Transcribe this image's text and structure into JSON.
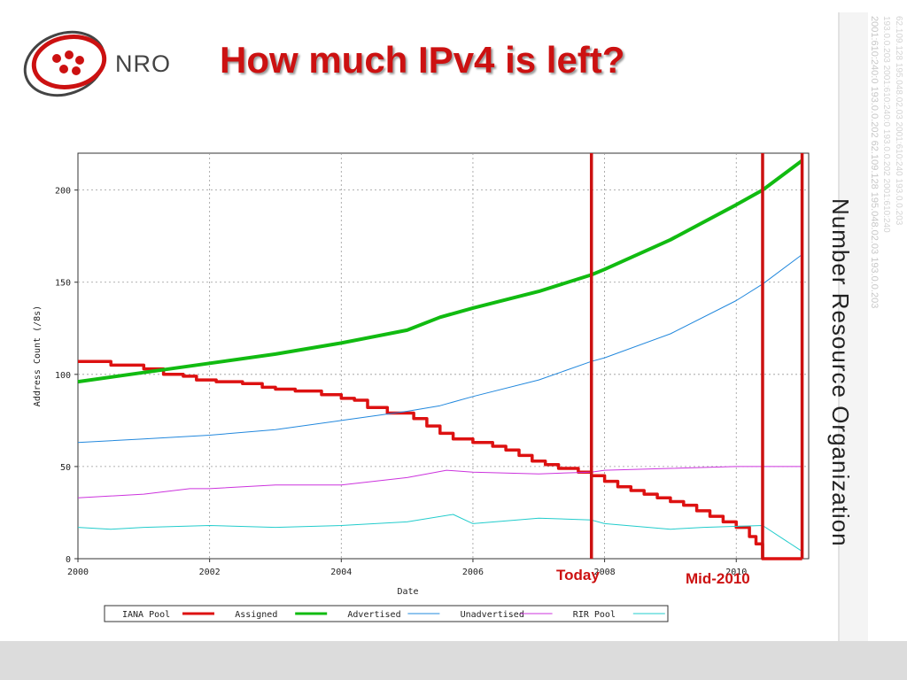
{
  "slide": {
    "title": "How much IPv4 is left?",
    "logo_text": "NRO",
    "org_name": "Number Resource Organization",
    "sidebar_lines": [
      "2001:610:240:0  193.0.0.202  62.109.128  195.048.02.03  193.0.0.203",
      "193.0.0.203  2001:610:240:0  193.0.0.202  2001:610:240",
      "62.109.128  195.048.02.03  2001:610:240  193.0.0.203"
    ]
  },
  "annotations": {
    "today": "Today",
    "mid2010": "Mid-2010"
  },
  "colors": {
    "title": "#cc1111",
    "iana": "#dd1111",
    "assigned": "#11bb11",
    "advertised": "#2288dd",
    "unadvertised": "#cc33dd",
    "rir": "#22cccc",
    "marker": "#cc1111"
  },
  "chart_data": {
    "type": "line",
    "xlabel": "Date",
    "ylabel": "Address Count (/8s)",
    "xlim": [
      2000,
      2011.1
    ],
    "ylim": [
      0,
      220
    ],
    "xticks": [
      2000,
      2002,
      2004,
      2006,
      2008,
      2010
    ],
    "yticks": [
      0,
      50,
      100,
      150,
      200
    ],
    "grid": true,
    "legend_position": "bottom",
    "markers": [
      {
        "label": "Today",
        "x": 2007.8
      },
      {
        "label": "Mid-2010",
        "x": 2010.4
      },
      {
        "label": "",
        "x": 2011.0
      }
    ],
    "series": [
      {
        "name": "IANA Pool",
        "step": true,
        "x": [
          2000,
          2000.5,
          2001.0,
          2001.3,
          2001.6,
          2001.8,
          2002.1,
          2002.5,
          2002.8,
          2003.0,
          2003.3,
          2003.7,
          2004.0,
          2004.2,
          2004.4,
          2004.7,
          2005.1,
          2005.3,
          2005.5,
          2005.7,
          2006.0,
          2006.3,
          2006.5,
          2006.7,
          2006.9,
          2007.1,
          2007.3,
          2007.6,
          2007.8,
          2008.0,
          2008.2,
          2008.4,
          2008.6,
          2008.8,
          2009.0,
          2009.2,
          2009.4,
          2009.6,
          2009.8,
          2010.0,
          2010.2,
          2010.3,
          2010.4,
          2011.0
        ],
        "values": [
          107,
          105,
          103,
          100,
          99,
          97,
          96,
          95,
          93,
          92,
          91,
          89,
          87,
          86,
          82,
          79,
          76,
          72,
          68,
          65,
          63,
          61,
          59,
          56,
          53,
          51,
          49,
          47,
          45,
          42,
          39,
          37,
          35,
          33,
          31,
          29,
          26,
          23,
          20,
          17,
          12,
          8,
          0,
          0
        ]
      },
      {
        "name": "Assigned",
        "x": [
          2000,
          2001,
          2002,
          2003,
          2004,
          2005,
          2005.5,
          2006,
          2007,
          2007.8,
          2008,
          2009,
          2010,
          2010.4,
          2011.0
        ],
        "values": [
          96,
          101,
          106,
          111,
          117,
          124,
          131,
          136,
          145,
          154,
          157,
          173,
          192,
          200,
          216
        ]
      },
      {
        "name": "Advertised",
        "x": [
          2000,
          2001,
          2002,
          2003,
          2004,
          2005,
          2005.5,
          2006,
          2007,
          2007.8,
          2008,
          2009,
          2010,
          2010.4,
          2011.0
        ],
        "values": [
          63,
          65,
          67,
          70,
          75,
          80,
          83,
          88,
          97,
          107,
          109,
          122,
          140,
          149,
          165
        ]
      },
      {
        "name": "Unadvertised",
        "x": [
          2000,
          2001,
          2001.7,
          2002,
          2003,
          2004,
          2005,
          2005.6,
          2006,
          2007,
          2007.8,
          2008,
          2009,
          2010,
          2011.0
        ],
        "values": [
          33,
          35,
          38,
          38,
          40,
          40,
          44,
          48,
          47,
          46,
          47,
          48,
          49,
          50,
          50
        ]
      },
      {
        "name": "RIR Pool",
        "x": [
          2000,
          2000.5,
          2001,
          2002,
          2003,
          2004,
          2005,
          2005.7,
          2006,
          2007,
          2007.8,
          2008,
          2009,
          2009.5,
          2010.4,
          2011.0
        ],
        "values": [
          17,
          16,
          17,
          18,
          17,
          18,
          20,
          24,
          19,
          22,
          21,
          19,
          16,
          17,
          18,
          4
        ]
      }
    ]
  }
}
